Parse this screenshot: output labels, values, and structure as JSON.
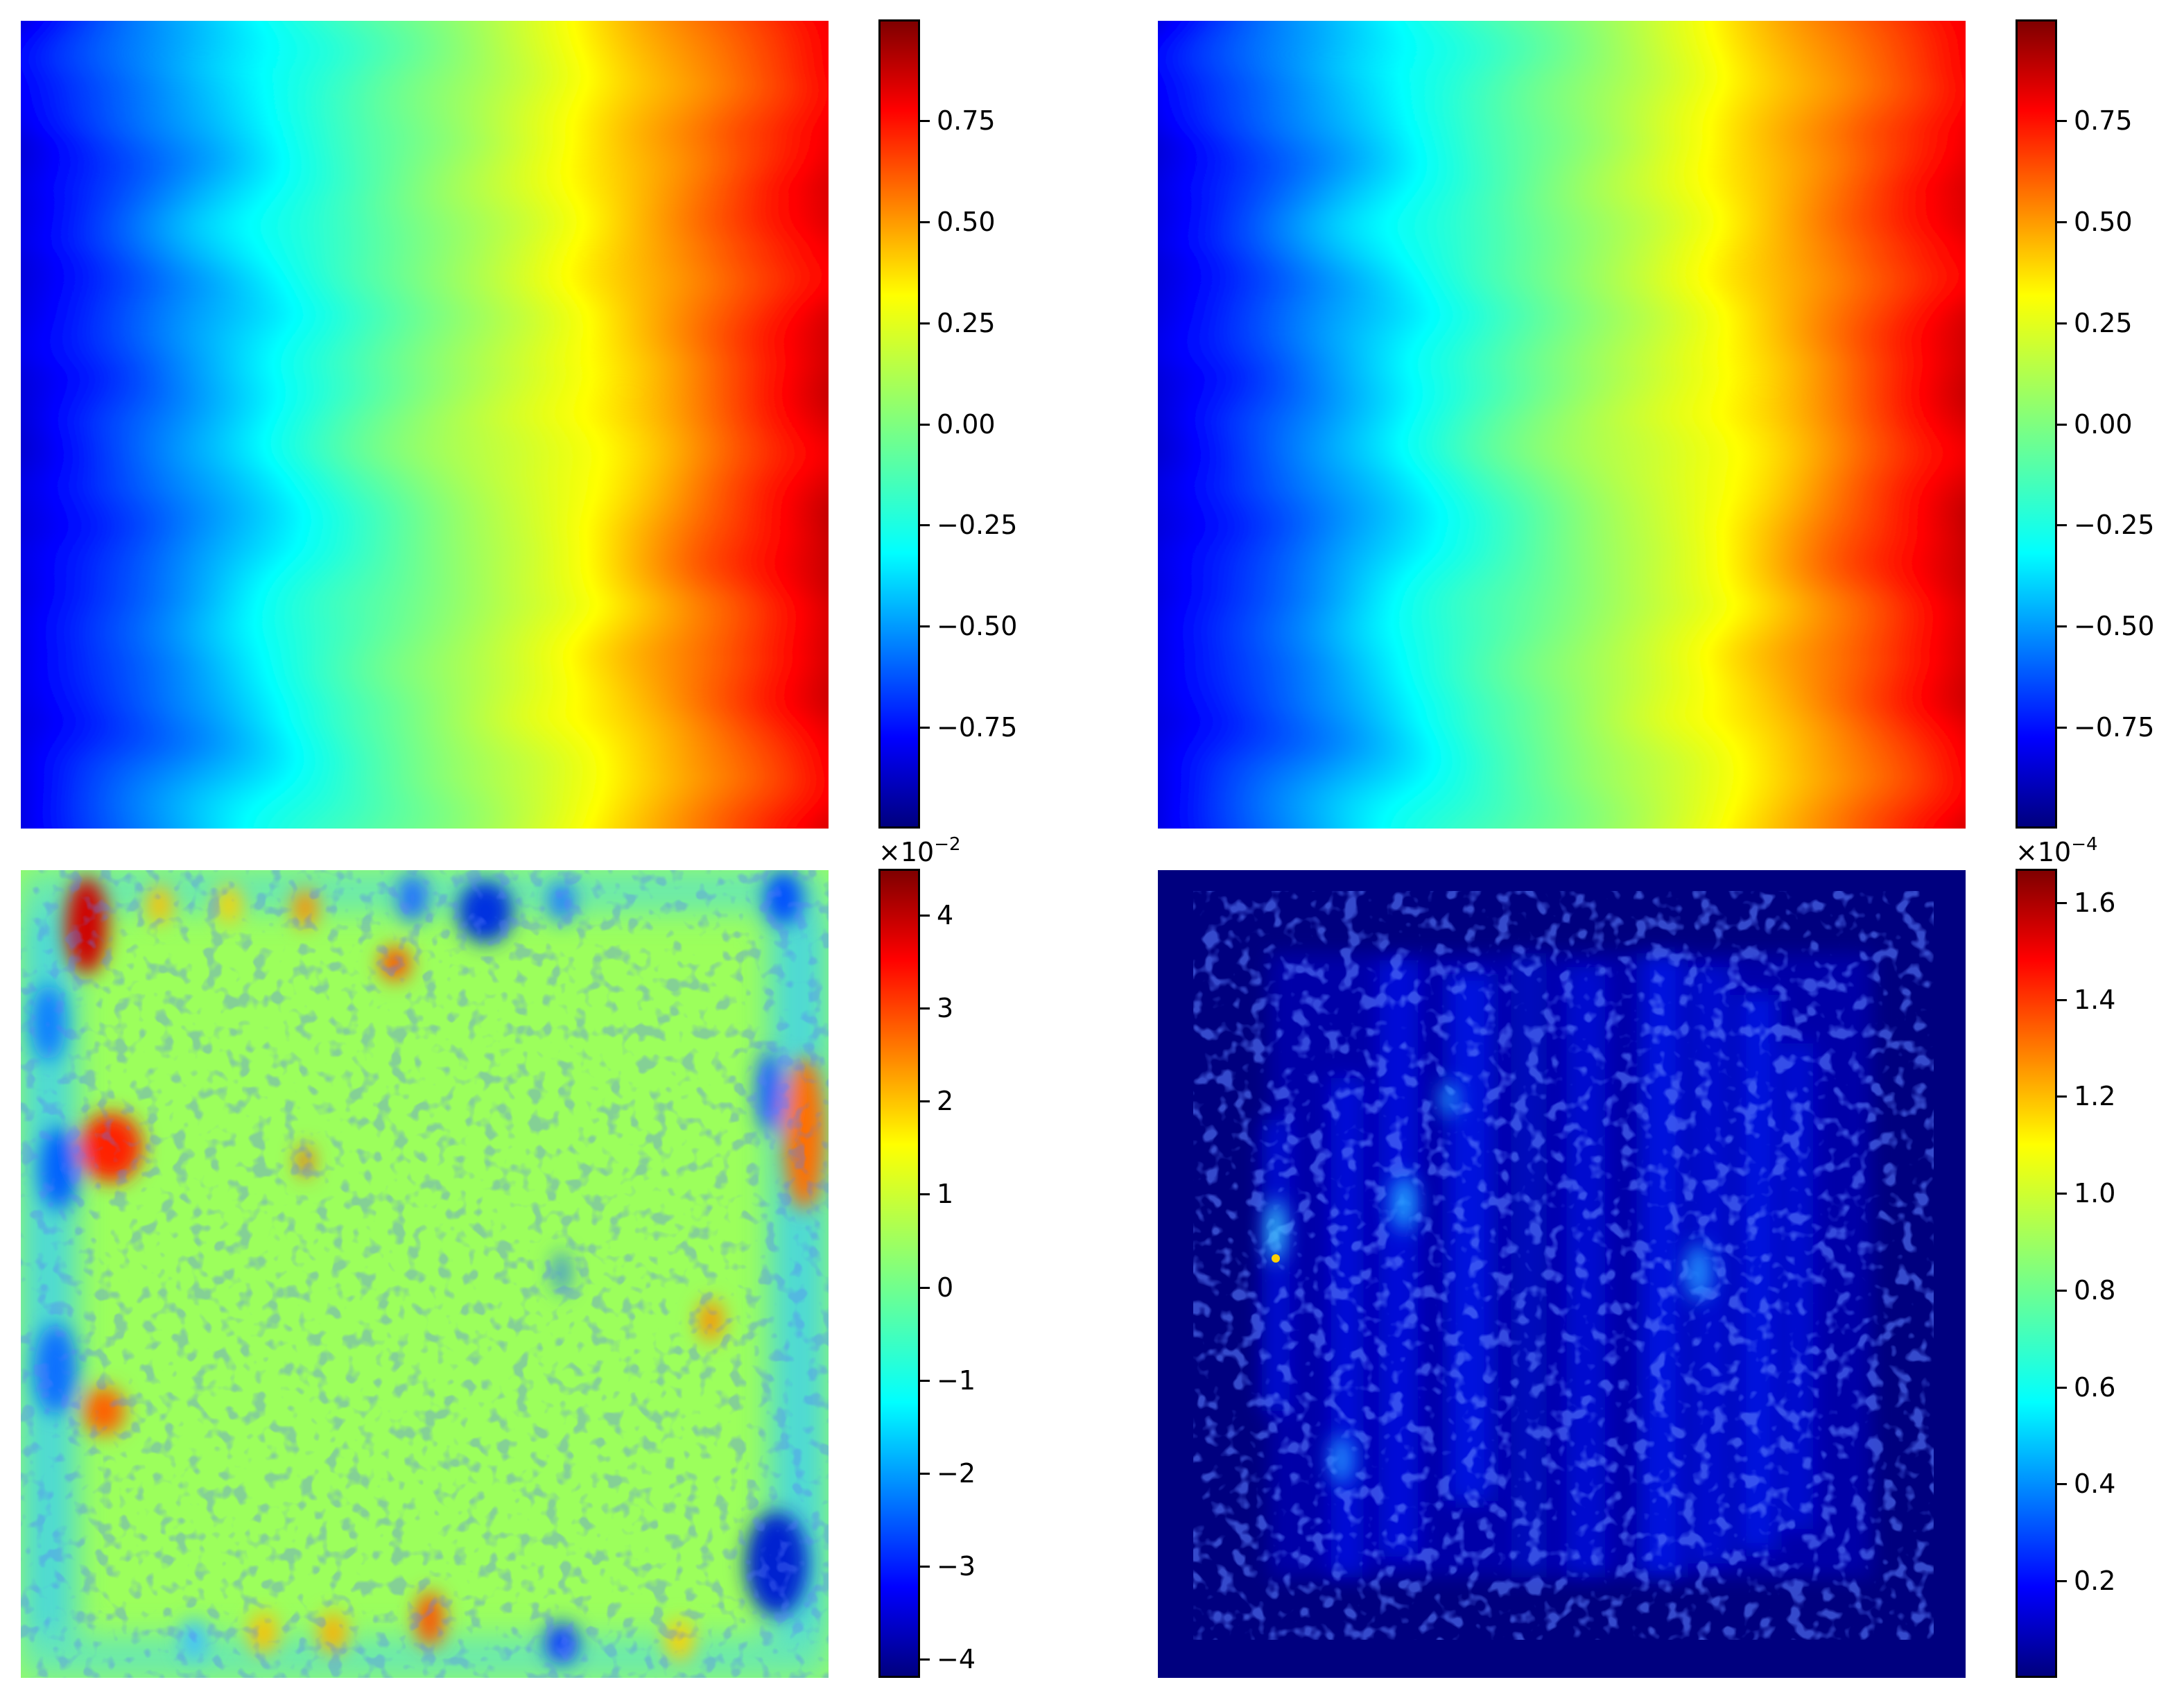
{
  "colors": {
    "colormap": "jet",
    "low": "#00007f",
    "high": "#7f0000"
  },
  "chart_data": [
    {
      "type": "heatmap",
      "title": "",
      "pattern": "vertical gradient field (predicted)",
      "value_range": [
        -1.0,
        1.0
      ],
      "colorbar": {
        "ticks": [
          -0.75,
          -0.5,
          -0.25,
          0.0,
          0.25,
          0.5,
          0.75
        ],
        "tick_labels": [
          "−0.75",
          "−0.50",
          "−0.25",
          "0.00",
          "0.25",
          "0.50",
          "0.75"
        ],
        "exponent_label": ""
      }
    },
    {
      "type": "heatmap",
      "title": "",
      "pattern": "vertical gradient field (reference)",
      "value_range": [
        -1.0,
        1.0
      ],
      "colorbar": {
        "ticks": [
          -0.75,
          -0.5,
          -0.25,
          0.0,
          0.25,
          0.5,
          0.75
        ],
        "tick_labels": [
          "−0.75",
          "−0.50",
          "−0.25",
          "0.00",
          "0.25",
          "0.50",
          "0.75"
        ],
        "exponent_label": ""
      }
    },
    {
      "type": "heatmap",
      "title": "",
      "pattern": "pointwise error",
      "value_range": [
        -4.2,
        4.5
      ],
      "colorbar": {
        "ticks": [
          -4,
          -3,
          -2,
          -1,
          0,
          1,
          2,
          3,
          4
        ],
        "tick_labels": [
          "−4",
          "−3",
          "−2",
          "−1",
          "0",
          "1",
          "2",
          "3",
          "4"
        ],
        "exponent_label": "×10",
        "exponent_power": "−2"
      }
    },
    {
      "type": "heatmap",
      "title": "",
      "pattern": "squared error",
      "value_range": [
        0.0,
        1.67
      ],
      "colorbar": {
        "ticks": [
          0.2,
          0.4,
          0.6,
          0.8,
          1.0,
          1.2,
          1.4,
          1.6
        ],
        "tick_labels": [
          "0.2",
          "0.4",
          "0.6",
          "0.8",
          "1.0",
          "1.2",
          "1.4",
          "1.6"
        ],
        "exponent_label": "×10",
        "exponent_power": "−4"
      }
    }
  ]
}
